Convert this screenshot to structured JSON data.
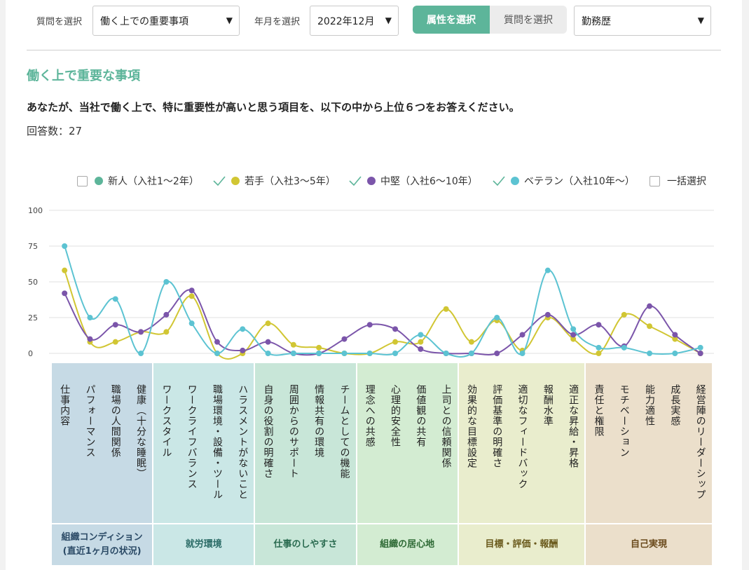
{
  "controls": {
    "question_label": "質問を選択",
    "question_value": "働く上での重要事項",
    "month_label": "年月を選択",
    "month_value": "2022年12月",
    "toggle_attr": "属性を選択",
    "toggle_question": "質問を選択",
    "attr_value": "勤務歴",
    "arrow": "▼"
  },
  "page": {
    "title": "働く上で重要な事項",
    "question": "あなたが、当社で働く上で、特に重要性が高いと思う項目を、以下の中から上位６つをお答えください。",
    "count": "回答数：27"
  },
  "legend": {
    "items": [
      {
        "label": "新人（入社1〜2年）",
        "checked": false,
        "color": "#5db59a"
      },
      {
        "label": "若手（入社3〜5年）",
        "checked": true,
        "color": "#d1c633"
      },
      {
        "label": "中堅（入社6〜10年）",
        "checked": true,
        "color": "#7b55aa"
      },
      {
        "label": "ベテラン（入社10年〜）",
        "checked": true,
        "color": "#5cc3d2"
      }
    ],
    "select_all": "一括選択"
  },
  "colors": {
    "accent": "#5db59a",
    "check": "#5db59a"
  },
  "chart_data": {
    "type": "line",
    "ylim": [
      0,
      100
    ],
    "yticks": [
      "0",
      "25",
      "50",
      "75",
      "100"
    ],
    "categories": [
      "仕事内容",
      "パフォーマンス",
      "職場の人間関係",
      "健康（十分な睡眠）",
      "ワークスタイル",
      "ワークライフバランス",
      "職場環境・設備・ツール",
      "ハラスメントがないこと",
      "自身の役割の明確さ",
      "周囲からのサポート",
      "情報共有の環境",
      "チームとしての機能",
      "理念への共感",
      "心理的安全性",
      "価値観の共有",
      "上司との信頼関係",
      "効果的な目標設定",
      "評価基準の明確さ",
      "適切なフィードバック",
      "報酬水準",
      "適正な昇給・昇格",
      "責任と権限",
      "モチベーション",
      "能力適性",
      "成長実感",
      "経営陣のリーダーシップ"
    ],
    "series": [
      {
        "name": "若手（入社3〜5年）",
        "color": "#d1c633",
        "values": [
          58,
          8,
          8,
          15,
          15,
          40,
          0,
          0,
          21,
          6,
          4,
          0,
          0,
          8,
          8,
          31,
          8,
          23,
          2,
          25,
          10,
          0,
          27,
          19,
          10,
          0
        ]
      },
      {
        "name": "中堅（入社6〜10年）",
        "color": "#7b55aa",
        "values": [
          42,
          10,
          20,
          15,
          27,
          44,
          8,
          2,
          8,
          0,
          0,
          10,
          20,
          17,
          3,
          0,
          0,
          0,
          13,
          27,
          13,
          20,
          5,
          33,
          13,
          0
        ]
      },
      {
        "name": "ベテラン（入社10年〜）",
        "color": "#5cc3d2",
        "values": [
          75,
          25,
          38,
          0,
          50,
          21,
          0,
          17,
          0,
          0,
          0,
          0,
          0,
          0,
          13,
          0,
          0,
          25,
          0,
          58,
          17,
          4,
          4,
          0,
          0,
          4
        ]
      }
    ],
    "groups": [
      {
        "label": "組織コンディション\n(直近1ヶ月の状況)",
        "start": 0,
        "count": 4,
        "bg": "#c6dae5",
        "text": "#2b4a66"
      },
      {
        "label": "就労環境",
        "start": 4,
        "count": 4,
        "bg": "#cae7e6",
        "text": "#2a6b66"
      },
      {
        "label": "仕事のしやすさ",
        "start": 8,
        "count": 4,
        "bg": "#c8e6d8",
        "text": "#2a6b50"
      },
      {
        "label": "組織の居心地",
        "start": 12,
        "count": 4,
        "bg": "#d3ecd2",
        "text": "#2e6a35"
      },
      {
        "label": "目標・評価・報酬",
        "start": 16,
        "count": 5,
        "bg": "#e9edcd",
        "text": "#6a5a1c"
      },
      {
        "label": "自己実現",
        "start": 21,
        "count": 5,
        "bg": "#ebdfcb",
        "text": "#6a4a1c"
      }
    ]
  }
}
